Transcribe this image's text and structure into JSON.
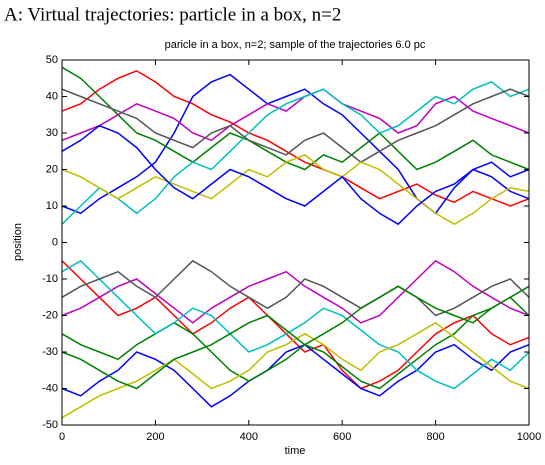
{
  "chart_data": {
    "type": "line",
    "heading": "A: Virtual trajectories: particle in a box, n=2",
    "title": "paricle in a box, n=2; sample of the trajectories 6.0 pc",
    "xlabel": "time",
    "ylabel": "position",
    "xlim": [
      0,
      1000
    ],
    "xticks": [
      0,
      200,
      400,
      600,
      800,
      1000
    ],
    "ylim": [
      -50,
      50
    ],
    "yticks": [
      -50,
      -40,
      -30,
      -20,
      -10,
      0,
      10,
      20,
      30,
      40,
      50
    ],
    "x": [
      0,
      40,
      80,
      120,
      160,
      200,
      240,
      280,
      320,
      360,
      400,
      440,
      480,
      520,
      560,
      600,
      640,
      680,
      720,
      760,
      800,
      840,
      880,
      920,
      960,
      1000
    ],
    "series": [
      {
        "color": "#ff0000",
        "values": [
          36,
          38,
          42,
          45,
          47,
          44,
          40,
          38,
          35,
          33,
          30,
          28,
          25,
          22,
          20,
          18,
          15,
          12,
          14,
          16,
          13,
          11,
          14,
          12,
          10,
          12
        ]
      },
      {
        "color": "#0000ff",
        "values": [
          10,
          8,
          12,
          15,
          18,
          22,
          30,
          40,
          44,
          46,
          42,
          38,
          40,
          42,
          38,
          35,
          30,
          25,
          20,
          12,
          8,
          15,
          20,
          18,
          14,
          12
        ]
      },
      {
        "color": "#008000",
        "values": [
          48,
          45,
          40,
          35,
          30,
          28,
          25,
          22,
          26,
          30,
          28,
          25,
          22,
          20,
          24,
          22,
          26,
          30,
          25,
          20,
          22,
          25,
          28,
          24,
          22,
          20
        ]
      },
      {
        "color": "#c000c0",
        "values": [
          28,
          30,
          32,
          35,
          38,
          36,
          34,
          30,
          28,
          32,
          35,
          38,
          36,
          40,
          42,
          38,
          36,
          34,
          30,
          32,
          38,
          40,
          36,
          34,
          32,
          30
        ]
      },
      {
        "color": "#00bfbf",
        "values": [
          5,
          10,
          15,
          12,
          8,
          12,
          18,
          22,
          20,
          25,
          30,
          35,
          38,
          40,
          42,
          38,
          35,
          30,
          32,
          36,
          40,
          38,
          42,
          44,
          40,
          42
        ]
      },
      {
        "color": "#555555",
        "values": [
          42,
          40,
          38,
          36,
          34,
          30,
          28,
          26,
          30,
          32,
          28,
          26,
          24,
          28,
          30,
          26,
          22,
          25,
          28,
          30,
          32,
          35,
          38,
          40,
          42,
          40
        ]
      },
      {
        "color": "#bfbf00",
        "values": [
          20,
          18,
          15,
          12,
          15,
          18,
          16,
          14,
          12,
          16,
          20,
          18,
          22,
          24,
          20,
          18,
          22,
          20,
          16,
          12,
          8,
          5,
          8,
          12,
          15,
          14
        ]
      },
      {
        "color": "#0000ff",
        "values": [
          25,
          28,
          32,
          30,
          26,
          20,
          15,
          12,
          16,
          20,
          18,
          15,
          12,
          10,
          14,
          18,
          12,
          8,
          5,
          10,
          14,
          16,
          20,
          22,
          18,
          20
        ]
      },
      {
        "color": "#ff0000",
        "values": [
          -5,
          -10,
          -15,
          -20,
          -18,
          -15,
          -20,
          -25,
          -22,
          -18,
          -15,
          -20,
          -25,
          -30,
          -28,
          -35,
          -40,
          -38,
          -35,
          -30,
          -25,
          -22,
          -20,
          -25,
          -28,
          -26
        ]
      },
      {
        "color": "#0000ff",
        "values": [
          -40,
          -42,
          -38,
          -35,
          -30,
          -32,
          -35,
          -40,
          -45,
          -42,
          -38,
          -35,
          -30,
          -28,
          -32,
          -36,
          -40,
          -42,
          -38,
          -35,
          -30,
          -28,
          -32,
          -35,
          -30,
          -28
        ]
      },
      {
        "color": "#008000",
        "values": [
          -25,
          -28,
          -30,
          -32,
          -28,
          -25,
          -22,
          -25,
          -30,
          -35,
          -38,
          -35,
          -32,
          -28,
          -30,
          -34,
          -38,
          -40,
          -36,
          -32,
          -28,
          -25,
          -20,
          -18,
          -15,
          -12
        ]
      },
      {
        "color": "#c000c0",
        "values": [
          -20,
          -18,
          -15,
          -12,
          -10,
          -14,
          -18,
          -22,
          -18,
          -15,
          -12,
          -10,
          -8,
          -12,
          -15,
          -18,
          -22,
          -20,
          -15,
          -10,
          -5,
          -8,
          -12,
          -15,
          -18,
          -20
        ]
      },
      {
        "color": "#00bfbf",
        "values": [
          -8,
          -5,
          -10,
          -15,
          -20,
          -25,
          -22,
          -18,
          -20,
          -25,
          -30,
          -28,
          -25,
          -22,
          -18,
          -20,
          -24,
          -28,
          -30,
          -35,
          -38,
          -40,
          -36,
          -32,
          -35,
          -30
        ]
      },
      {
        "color": "#555555",
        "values": [
          -15,
          -12,
          -10,
          -8,
          -12,
          -15,
          -10,
          -5,
          -8,
          -12,
          -15,
          -18,
          -15,
          -10,
          -12,
          -15,
          -18,
          -15,
          -12,
          -15,
          -20,
          -18,
          -15,
          -12,
          -10,
          -15
        ]
      },
      {
        "color": "#bfbf00",
        "values": [
          -48,
          -45,
          -42,
          -40,
          -38,
          -35,
          -32,
          -36,
          -40,
          -38,
          -35,
          -30,
          -28,
          -25,
          -28,
          -32,
          -35,
          -30,
          -28,
          -25,
          -22,
          -26,
          -30,
          -34,
          -38,
          -40
        ]
      },
      {
        "color": "#008000",
        "values": [
          -30,
          -32,
          -35,
          -38,
          -40,
          -36,
          -32,
          -30,
          -28,
          -25,
          -22,
          -20,
          -24,
          -28,
          -25,
          -22,
          -18,
          -15,
          -12,
          -15,
          -18,
          -20,
          -22,
          -18,
          -15,
          -20
        ]
      }
    ]
  }
}
